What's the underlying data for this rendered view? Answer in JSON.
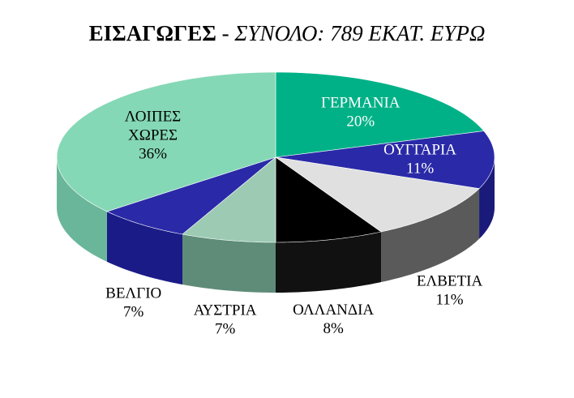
{
  "chart_data": {
    "type": "pie",
    "title": "ΕΙΣΑΓΩΓΕΣ",
    "subtitle": "- ΣΥΝΟΛΟ: 789 ΕΚΑΤ. ΕΥΡΩ",
    "style": "3d",
    "slices": [
      {
        "name": "ΓΕΡΜΑΝΙΑ",
        "name_lines": [
          "ΓΕΡΜΑΝΙΑ"
        ],
        "value": 20,
        "label": "20%",
        "color": "#00b187",
        "side_color": "#008a68",
        "label_color": "#ffffff",
        "label_pos": "inside"
      },
      {
        "name": "ΟΥΓΓΑΡΙΑ",
        "name_lines": [
          "ΟΥΓΓΑΡΙΑ"
        ],
        "value": 11,
        "label": "11%",
        "color": "#2a2aa8",
        "side_color": "#1a1a7a",
        "label_color": "#ffffff",
        "label_pos": "inside"
      },
      {
        "name": "ΕΛΒΕΤΙΑ",
        "name_lines": [
          "ΕΛΒΕΤΙΑ"
        ],
        "value": 11,
        "label": "11%",
        "color": "#e0e0e0",
        "side_color": "#5a5a5a",
        "label_color": "#000000",
        "label_pos": "outside"
      },
      {
        "name": "ΟΛΛΑΝΔΙΑ",
        "name_lines": [
          "ΟΛΛΑΝΔΙΑ"
        ],
        "value": 8,
        "label": "8%",
        "color": "#000000",
        "side_color": "#111111",
        "label_color": "#000000",
        "label_pos": "outside"
      },
      {
        "name": "ΑΥΣΤΡΙΑ",
        "name_lines": [
          "ΑΥΣΤΡΙΑ"
        ],
        "value": 7,
        "label": "7%",
        "color": "#9ccab3",
        "side_color": "#5e8c78",
        "label_color": "#000000",
        "label_pos": "outside"
      },
      {
        "name": "ΒΕΛΓΙΟ",
        "name_lines": [
          "ΒΕΛΓΙΟ"
        ],
        "value": 7,
        "label": "7%",
        "color": "#2a2aa8",
        "side_color": "#1b1b88",
        "label_color": "#000000",
        "label_pos": "outside"
      },
      {
        "name": "ΛΟΙΠΕΣ ΧΩΡΕΣ",
        "name_lines": [
          "ΛΟΙΠΕΣ",
          "ΧΩΡΕΣ"
        ],
        "value": 36,
        "label": "36%",
        "color": "#85d8b6",
        "side_color": "#6ab69a",
        "label_color": "#000000",
        "label_pos": "inside"
      }
    ]
  }
}
